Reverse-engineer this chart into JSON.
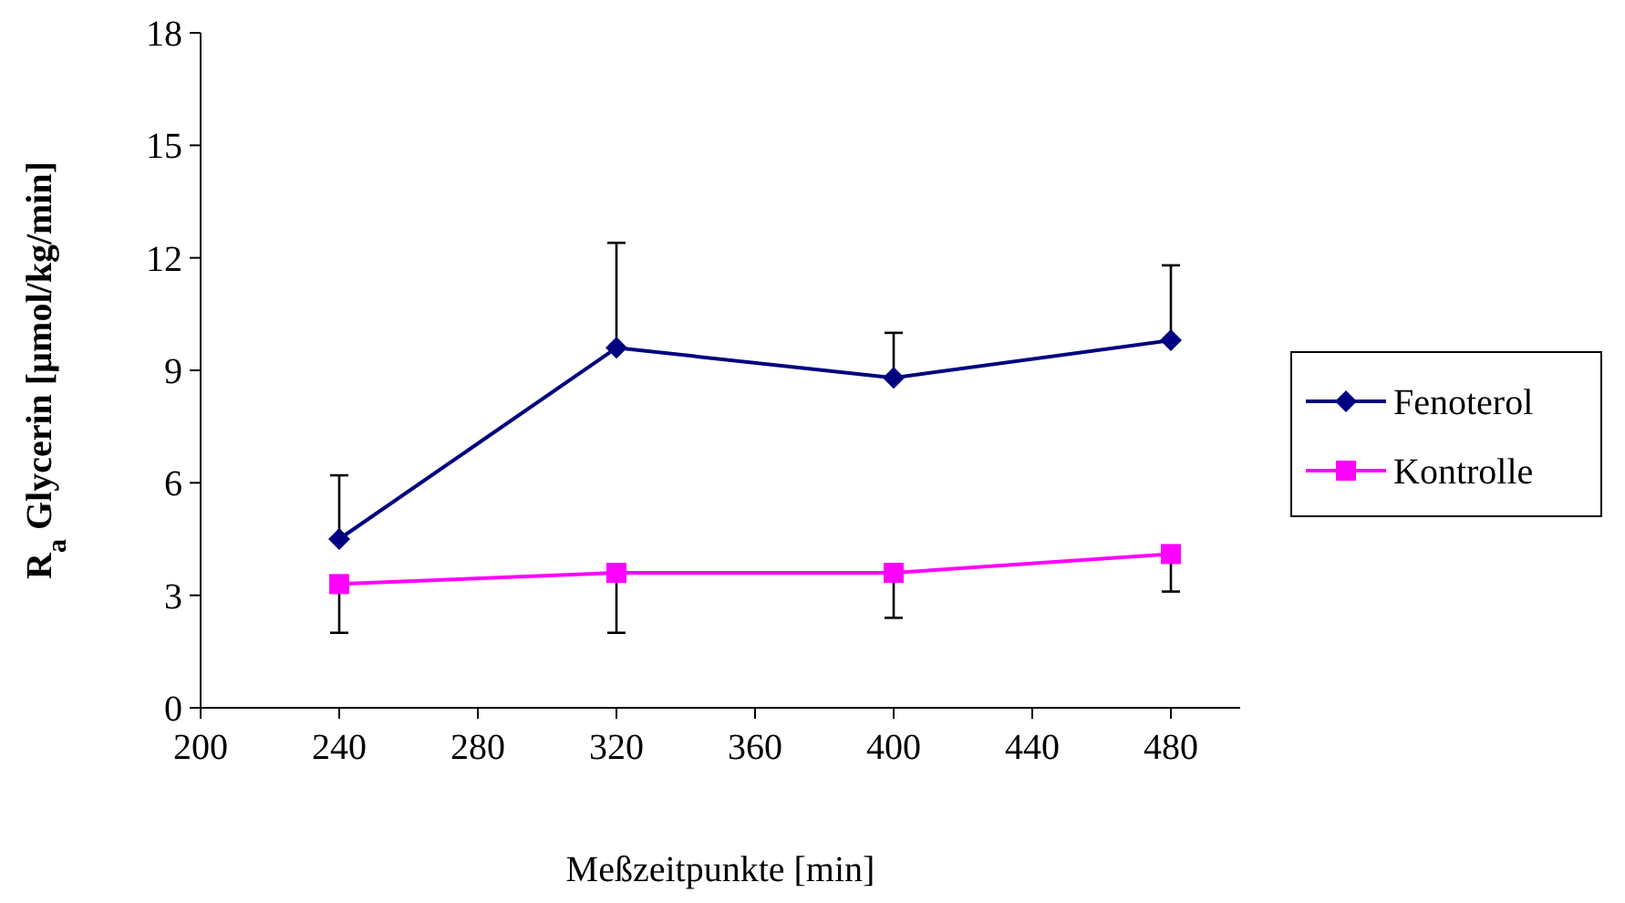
{
  "chart_data": {
    "type": "line",
    "xlabel": "Meßzeitpunkte [min]",
    "ylabel": "R$_{a}$ Glycerin [µmol/kg/min]",
    "x": [
      240,
      320,
      400,
      480
    ],
    "series": [
      {
        "name": "Fenoterol",
        "color": "#000080",
        "marker": "diamond",
        "values": [
          4.5,
          9.6,
          8.8,
          9.8
        ],
        "errors": [
          [
            4.5,
            6.2
          ],
          [
            9.6,
            12.4
          ],
          [
            8.8,
            10.0
          ],
          [
            9.8,
            11.8
          ]
        ]
      },
      {
        "name": "Kontrolle",
        "color": "#ff00ff",
        "marker": "square",
        "values": [
          3.3,
          3.6,
          3.6,
          4.1
        ],
        "errors": [
          [
            2.0,
            3.3
          ],
          [
            2.0,
            3.6
          ],
          [
            2.4,
            3.6
          ],
          [
            3.1,
            4.1
          ]
        ]
      }
    ],
    "xlim": [
      200,
      500
    ],
    "xticks": [
      200,
      240,
      280,
      320,
      360,
      400,
      440,
      480
    ],
    "ylim": [
      0,
      18
    ],
    "yticks": [
      0,
      3,
      6,
      9,
      12,
      15,
      18
    ],
    "grid": false,
    "legend": "right",
    "line_style": "solid"
  }
}
